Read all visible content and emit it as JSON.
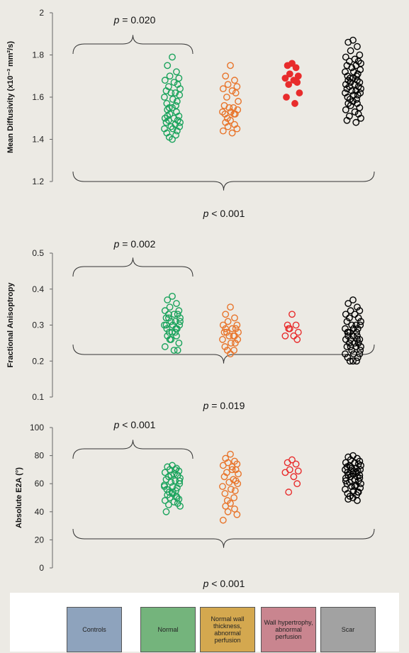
{
  "chart_data": [
    {
      "type": "scatter",
      "ylabel": "Mean Diffusivity (x10⁻³ mm²/s)",
      "ylim": [
        1.2,
        2.0
      ],
      "yticks": [
        "1.2",
        "1.4",
        "1.6",
        "1.8",
        "2"
      ],
      "annotations": [
        {
          "text": "p = 0.020",
          "bracket": "top",
          "groups": [
            "Controls",
            "Normal"
          ]
        },
        {
          "text": "p < 0.001",
          "bracket": "bottom",
          "groups": [
            "Controls",
            "Normal",
            "Normal wall thickness, abnormal perfusion",
            "Wall hypertrophy, abnormal perfusion",
            "Scar"
          ]
        }
      ],
      "series": [
        {
          "name": "Normal",
          "color": "#1aa35c",
          "filled": false,
          "values": [
            1.79,
            1.75,
            1.72,
            1.7,
            1.69,
            1.68,
            1.67,
            1.66,
            1.65,
            1.64,
            1.63,
            1.62,
            1.62,
            1.61,
            1.6,
            1.59,
            1.58,
            1.57,
            1.56,
            1.55,
            1.55,
            1.54,
            1.53,
            1.52,
            1.51,
            1.5,
            1.5,
            1.49,
            1.49,
            1.48,
            1.48,
            1.47,
            1.46,
            1.46,
            1.45,
            1.45,
            1.44,
            1.43,
            1.42,
            1.41,
            1.4,
            1.51
          ]
        },
        {
          "name": "Normal wall thickness, abnormal perfusion",
          "color": "#e8742a",
          "filled": false,
          "values": [
            1.75,
            1.7,
            1.68,
            1.66,
            1.65,
            1.64,
            1.63,
            1.62,
            1.6,
            1.58,
            1.56,
            1.55,
            1.55,
            1.54,
            1.53,
            1.53,
            1.52,
            1.52,
            1.52,
            1.5,
            1.49,
            1.48,
            1.47,
            1.46,
            1.45,
            1.44,
            1.43
          ]
        },
        {
          "name": "Wall hypertrophy, abnormal perfusion",
          "color": "#e82c2c",
          "filled": true,
          "values": [
            1.76,
            1.75,
            1.74,
            1.71,
            1.7,
            1.69,
            1.68,
            1.67,
            1.66,
            1.62,
            1.6,
            1.57
          ]
        },
        {
          "name": "Scar",
          "color": "#000000",
          "filled": false,
          "values": [
            1.87,
            1.86,
            1.84,
            1.82,
            1.8,
            1.79,
            1.78,
            1.77,
            1.77,
            1.76,
            1.75,
            1.75,
            1.74,
            1.73,
            1.72,
            1.72,
            1.71,
            1.7,
            1.7,
            1.69,
            1.69,
            1.68,
            1.68,
            1.67,
            1.67,
            1.66,
            1.66,
            1.65,
            1.65,
            1.64,
            1.64,
            1.63,
            1.63,
            1.62,
            1.62,
            1.61,
            1.61,
            1.6,
            1.59,
            1.59,
            1.58,
            1.57,
            1.57,
            1.56,
            1.55,
            1.54,
            1.53,
            1.52,
            1.51,
            1.5,
            1.49,
            1.48
          ]
        }
      ]
    },
    {
      "type": "scatter",
      "ylabel": "Fractional Anisoptropy",
      "ylim": [
        0.1,
        0.5
      ],
      "yticks": [
        "0.1",
        "0.2",
        "0.3",
        "0.4",
        "0.5"
      ],
      "annotations": [
        {
          "text": "p = 0.002",
          "bracket": "top",
          "groups": [
            "Controls",
            "Normal"
          ]
        },
        {
          "text": "p = 0.019",
          "bracket": "bottom",
          "groups": [
            "Controls",
            "Normal",
            "Normal wall thickness, abnormal perfusion",
            "Wall hypertrophy, abnormal perfusion",
            "Scar"
          ]
        }
      ],
      "series": [
        {
          "name": "Normal",
          "color": "#1aa35c",
          "filled": false,
          "values": [
            0.38,
            0.37,
            0.36,
            0.35,
            0.34,
            0.34,
            0.33,
            0.33,
            0.33,
            0.32,
            0.32,
            0.31,
            0.31,
            0.3,
            0.3,
            0.3,
            0.29,
            0.29,
            0.29,
            0.28,
            0.28,
            0.27,
            0.27,
            0.26,
            0.25,
            0.24,
            0.23,
            0.23,
            0.32,
            0.31,
            0.3,
            0.28,
            0.26
          ]
        },
        {
          "name": "Normal wall thickness, abnormal perfusion",
          "color": "#e8742a",
          "filled": false,
          "values": [
            0.35,
            0.33,
            0.32,
            0.31,
            0.3,
            0.3,
            0.29,
            0.29,
            0.28,
            0.28,
            0.28,
            0.27,
            0.27,
            0.26,
            0.26,
            0.25,
            0.25,
            0.24,
            0.23,
            0.23,
            0.22,
            0.29,
            0.27
          ]
        },
        {
          "name": "Wall hypertrophy, abnormal perfusion",
          "color": "#e82c2c",
          "filled": false,
          "values": [
            0.33,
            0.3,
            0.3,
            0.29,
            0.28,
            0.27,
            0.27,
            0.26,
            0.29
          ]
        },
        {
          "name": "Scar",
          "color": "#000000",
          "filled": false,
          "values": [
            0.37,
            0.36,
            0.35,
            0.34,
            0.34,
            0.33,
            0.33,
            0.32,
            0.32,
            0.31,
            0.31,
            0.3,
            0.3,
            0.3,
            0.29,
            0.29,
            0.29,
            0.28,
            0.28,
            0.28,
            0.27,
            0.27,
            0.27,
            0.26,
            0.26,
            0.26,
            0.25,
            0.25,
            0.25,
            0.24,
            0.24,
            0.24,
            0.23,
            0.23,
            0.22,
            0.22,
            0.21,
            0.21,
            0.2,
            0.2,
            0.2,
            0.28,
            0.26,
            0.24,
            0.22
          ]
        }
      ]
    },
    {
      "type": "scatter",
      "ylabel": "Absolute E2A (°)",
      "ylim": [
        0,
        100
      ],
      "yticks": [
        "0",
        "20",
        "40",
        "60",
        "80",
        "100"
      ],
      "annotations": [
        {
          "text": "p < 0.001",
          "bracket": "top",
          "groups": [
            "Controls",
            "Normal"
          ]
        },
        {
          "text": "p < 0.001",
          "bracket": "bottom",
          "groups": [
            "Controls",
            "Normal",
            "Normal wall thickness, abnormal perfusion",
            "Wall hypertrophy, abnormal perfusion",
            "Scar"
          ]
        }
      ],
      "series": [
        {
          "name": "Normal",
          "color": "#1aa35c",
          "filled": false,
          "values": [
            73,
            72,
            71,
            70,
            69,
            68,
            67,
            66,
            65,
            64,
            63,
            62,
            61,
            60,
            59,
            58,
            57,
            56,
            55,
            54,
            53,
            52,
            51,
            50,
            49,
            48,
            47,
            46,
            45,
            44,
            40,
            70,
            66,
            62,
            58,
            54,
            50
          ]
        },
        {
          "name": "Normal wall thickness, abnormal perfusion",
          "color": "#e8742a",
          "filled": false,
          "values": [
            81,
            78,
            76,
            75,
            74,
            73,
            72,
            70,
            68,
            67,
            65,
            63,
            61,
            60,
            58,
            56,
            55,
            53,
            50,
            48,
            46,
            44,
            42,
            40,
            38,
            34,
            70,
            62
          ]
        },
        {
          "name": "Wall hypertrophy, abnormal perfusion",
          "color": "#e82c2c",
          "filled": false,
          "values": [
            77,
            75,
            74,
            70,
            69,
            68,
            65,
            60,
            54
          ]
        },
        {
          "name": "Scar",
          "color": "#000000",
          "filled": false,
          "values": [
            80,
            79,
            78,
            77,
            76,
            75,
            75,
            74,
            73,
            73,
            72,
            71,
            71,
            70,
            70,
            69,
            69,
            68,
            68,
            67,
            67,
            66,
            65,
            65,
            64,
            64,
            63,
            62,
            61,
            60,
            60,
            59,
            58,
            57,
            56,
            55,
            54,
            53,
            52,
            51,
            50,
            49,
            48,
            72,
            66,
            62,
            58,
            54
          ]
        }
      ]
    }
  ],
  "legend": {
    "items": [
      {
        "label": "Controls",
        "color": "#8ea3bd"
      },
      {
        "label": "Normal",
        "color": "#74b47c"
      },
      {
        "label": "Normal wall thickness, abnormal perfusion",
        "color": "#d4a84f"
      },
      {
        "label": "Wall hypertrophy, abnormal perfusion",
        "color": "#c9858f"
      },
      {
        "label": "Scar",
        "color": "#a2a2a2"
      }
    ]
  }
}
